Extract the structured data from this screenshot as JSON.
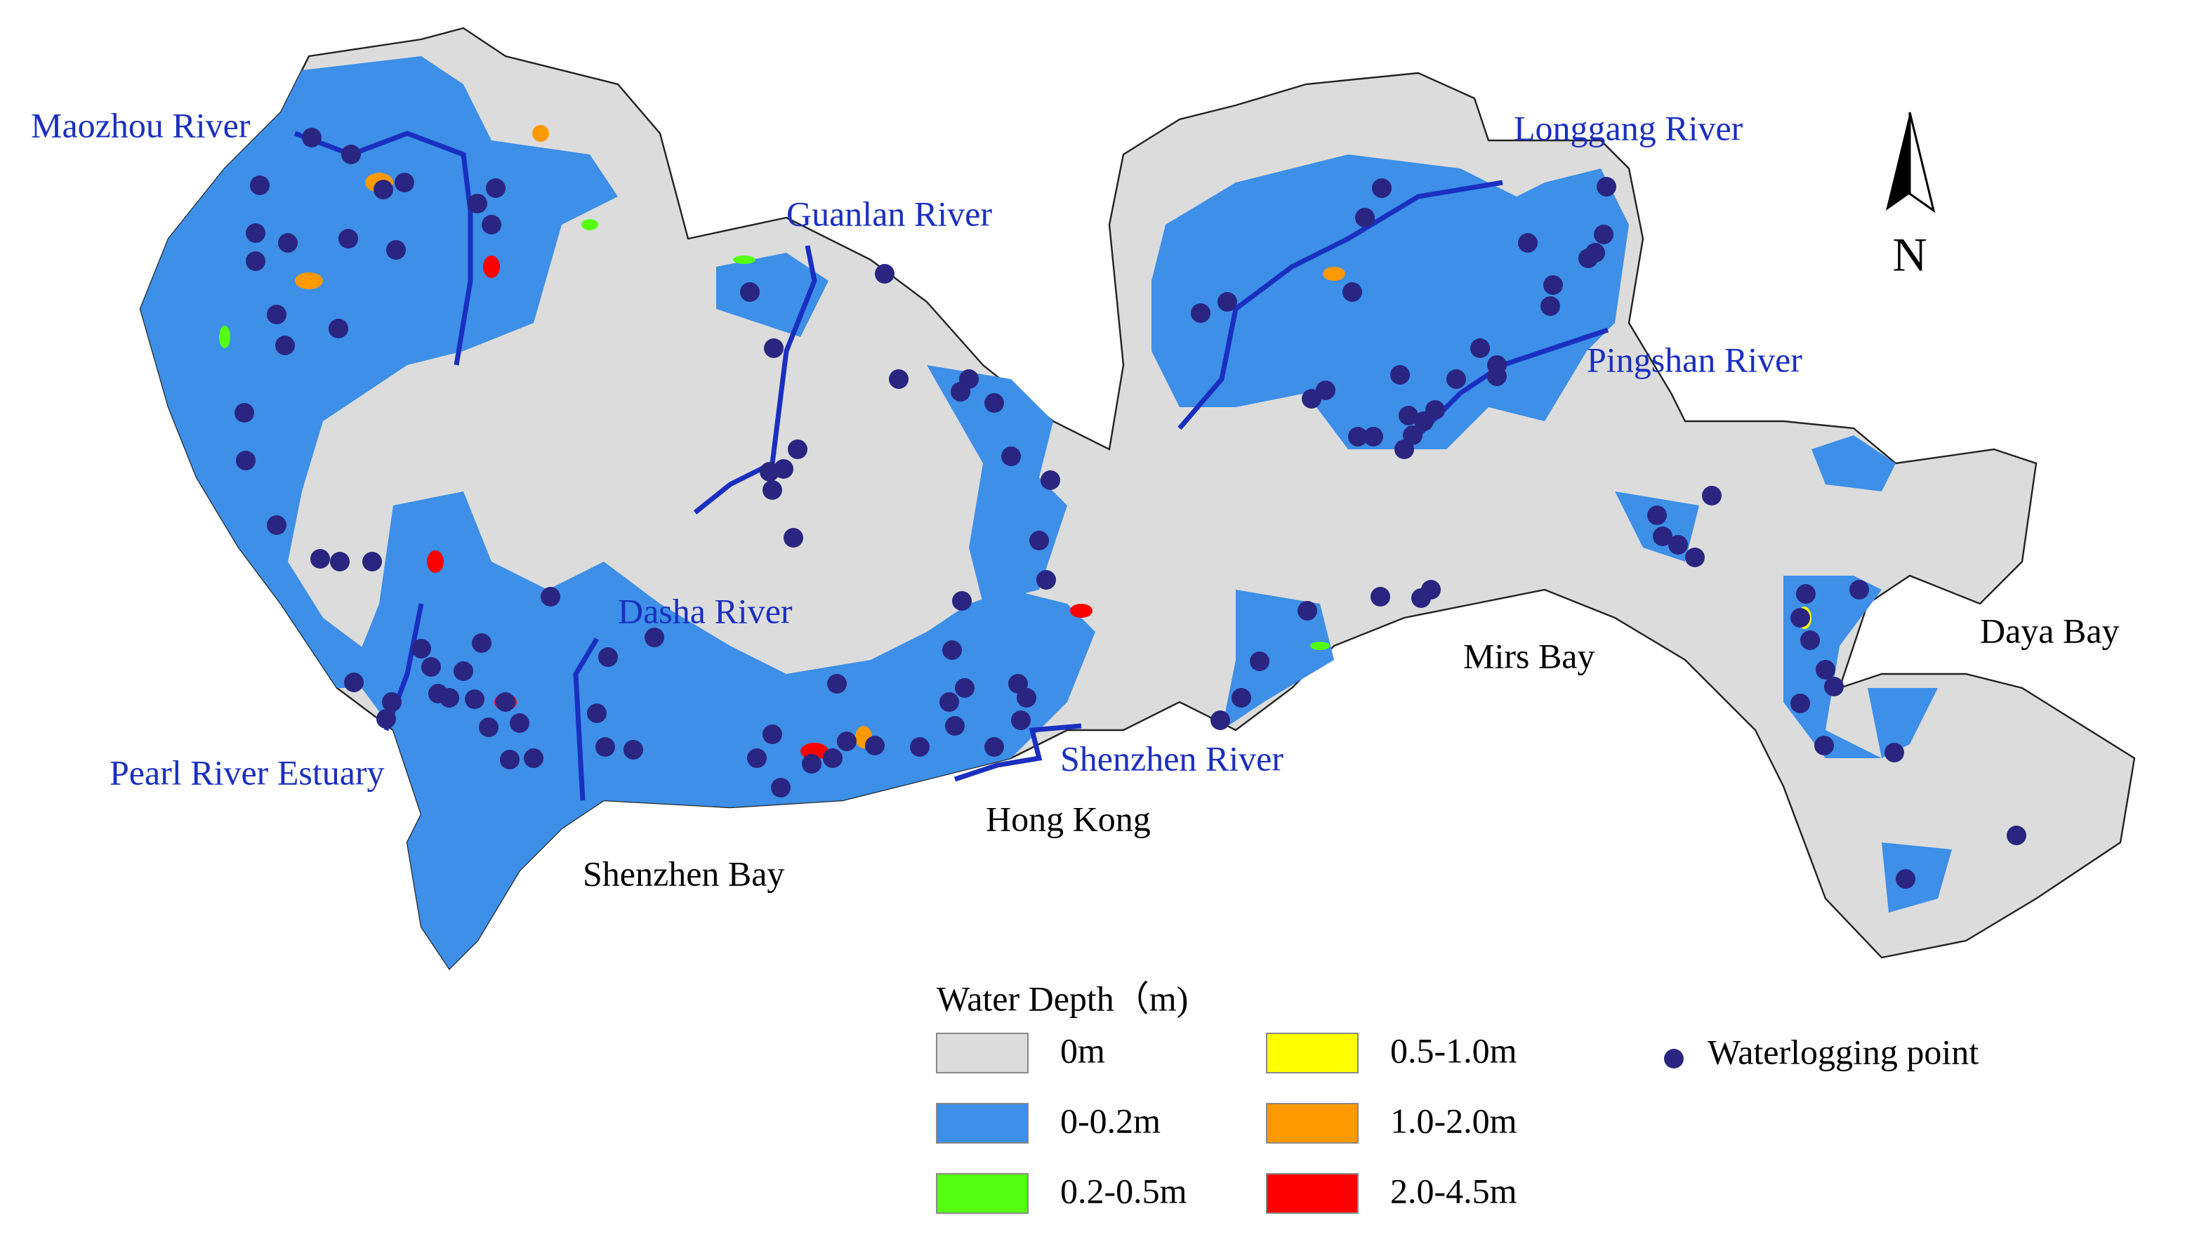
{
  "map": {
    "rivers": [
      {
        "name": "Maozhou River"
      },
      {
        "name": "Guanlan River"
      },
      {
        "name": "Longgang River"
      },
      {
        "name": "Pingshan River"
      },
      {
        "name": "Dasha River"
      },
      {
        "name": "Pearl River Estuary"
      },
      {
        "name": "Shenzhen River"
      }
    ],
    "places": [
      "Shenzhen Bay",
      "Hong Kong",
      "Mirs Bay",
      "Daya Bay"
    ],
    "north": "N"
  },
  "legend": {
    "title": "Water Depth（m)",
    "items": [
      {
        "label": "0m",
        "color": "#dcdcdc"
      },
      {
        "label": "0-0.2m",
        "color": "#3d8fe8"
      },
      {
        "label": "0.2-0.5m",
        "color": "#55ff10"
      },
      {
        "label": "0.5-1.0m",
        "color": "#ffff00"
      },
      {
        "label": "1.0-2.0m",
        "color": "#ff9900"
      },
      {
        "label": "2.0-4.5m",
        "color": "#ff0000"
      }
    ],
    "point": {
      "label": "Waterlogging point",
      "color": "#2a2580"
    }
  }
}
